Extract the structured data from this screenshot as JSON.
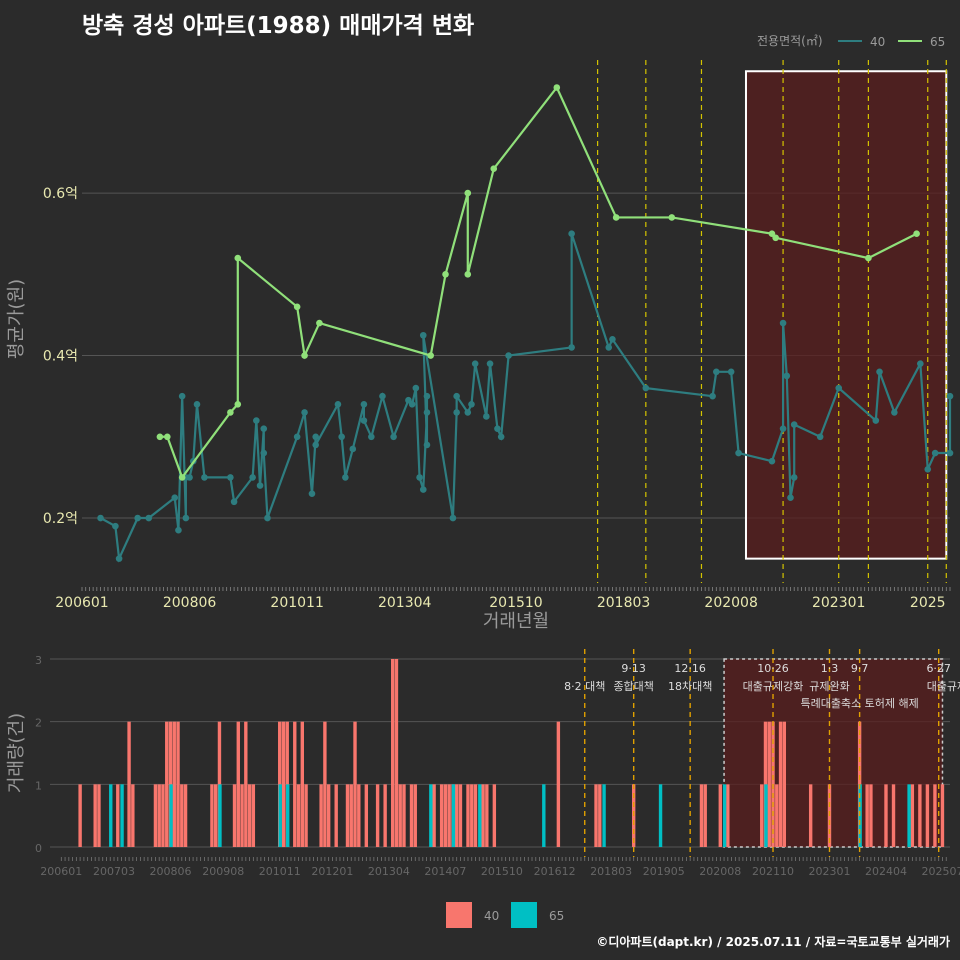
{
  "title": "방축 경성 아파트(1988) 매매가격 변화",
  "credit": "©디아파트(dapt.kr) / 2025.07.11 / 자료=국토교통부 실거래가",
  "colors": {
    "bg": "#2b2b2b",
    "series_40": "#2e7d80",
    "series_65": "#90e07a",
    "bar_40": "#f8766d",
    "bar_65": "#00bfc4",
    "policy_line": "#d4c400",
    "policy_line_bottom": "#e0a000",
    "highlight_fill": "#5a1e1e",
    "grid": "#555555"
  },
  "legend_top": {
    "title": "전용면적(㎡)",
    "items": [
      "40",
      "65"
    ]
  },
  "legend_bottom": {
    "items": [
      "40",
      "65"
    ]
  },
  "chart_data": [
    {
      "type": "line",
      "title": "방축 경성 아파트(1988) 매매가격 변화",
      "xlabel": "거래년월",
      "ylabel": "평균가(원)",
      "ylim": [
        0.12,
        0.77
      ],
      "yticks": [
        {
          "v": 0.2,
          "label": "0.2억"
        },
        {
          "v": 0.4,
          "label": "0.4억"
        },
        {
          "v": 0.6,
          "label": "0.6억"
        }
      ],
      "xlim": [
        "2006-01",
        "2025-07"
      ],
      "xticks": [
        "200601",
        "200806",
        "201011",
        "201304",
        "201510",
        "201803",
        "202008",
        "202301",
        "2025"
      ],
      "grid": true,
      "legend_position": "top-right",
      "highlight_box": {
        "x0": "2020-12",
        "x1": "2025-06",
        "y0": 0.15,
        "y1": 0.75
      },
      "policy_dates": [
        "2017-08",
        "2018-09",
        "2019-12",
        "2021-10",
        "2023-01",
        "2023-09",
        "2025-01",
        "2025-06"
      ],
      "series": [
        {
          "name": "40",
          "points": [
            [
              "2006-06",
              0.2
            ],
            [
              "2006-10",
              0.19
            ],
            [
              "2006-11",
              0.15
            ],
            [
              "2007-04",
              0.2
            ],
            [
              "2007-07",
              0.2
            ],
            [
              "2008-02",
              0.225
            ],
            [
              "2008-03",
              0.185
            ],
            [
              "2008-04",
              0.35
            ],
            [
              "2008-05",
              0.2
            ],
            [
              "2008-05",
              0.25
            ],
            [
              "2008-06",
              0.25
            ],
            [
              "2008-07",
              0.27
            ],
            [
              "2008-08",
              0.34
            ],
            [
              "2008-10",
              0.25
            ],
            [
              "2009-05",
              0.25
            ],
            [
              "2009-06",
              0.22
            ],
            [
              "2009-11",
              0.25
            ],
            [
              "2009-12",
              0.32
            ],
            [
              "2010-01",
              0.24
            ],
            [
              "2010-02",
              0.31
            ],
            [
              "2010-02",
              0.28
            ],
            [
              "2010-03",
              0.2
            ],
            [
              "2010-11",
              0.3
            ],
            [
              "2011-01",
              0.33
            ],
            [
              "2011-03",
              0.23
            ],
            [
              "2011-04",
              0.3
            ],
            [
              "2011-04",
              0.29
            ],
            [
              "2011-10",
              0.34
            ],
            [
              "2011-11",
              0.3
            ],
            [
              "2011-12",
              0.25
            ],
            [
              "2012-02",
              0.285
            ],
            [
              "2012-05",
              0.34
            ],
            [
              "2012-05",
              0.32
            ],
            [
              "2012-07",
              0.3
            ],
            [
              "2012-10",
              0.35
            ],
            [
              "2013-01",
              0.3
            ],
            [
              "2013-05",
              0.345
            ],
            [
              "2013-06",
              0.34
            ],
            [
              "2013-07",
              0.36
            ],
            [
              "2013-08",
              0.25
            ],
            [
              "2013-09",
              0.235
            ],
            [
              "2013-10",
              0.33
            ],
            [
              "2013-10",
              0.35
            ],
            [
              "2013-10",
              0.29
            ],
            [
              "2013-09",
              0.425
            ],
            [
              "2014-05",
              0.2
            ],
            [
              "2014-06",
              0.33
            ],
            [
              "2014-06",
              0.35
            ],
            [
              "2014-09",
              0.33
            ],
            [
              "2014-10",
              0.34
            ],
            [
              "2014-11",
              0.39
            ],
            [
              "2015-02",
              0.325
            ],
            [
              "2015-03",
              0.39
            ],
            [
              "2015-05",
              0.31
            ],
            [
              "2015-06",
              0.3
            ],
            [
              "2015-08",
              0.4
            ],
            [
              "2017-01",
              0.41
            ],
            [
              "2017-01",
              0.55
            ],
            [
              "2017-11",
              0.41
            ],
            [
              "2017-12",
              0.42
            ],
            [
              "2018-09",
              0.36
            ],
            [
              "2020-03",
              0.35
            ],
            [
              "2020-04",
              0.38
            ],
            [
              "2020-08",
              0.38
            ],
            [
              "2020-10",
              0.28
            ],
            [
              "2021-07",
              0.27
            ],
            [
              "2021-10",
              0.31
            ],
            [
              "2021-10",
              0.44
            ],
            [
              "2021-11",
              0.375
            ],
            [
              "2021-12",
              0.225
            ],
            [
              "2022-01",
              0.25
            ],
            [
              "2022-01",
              0.315
            ],
            [
              "2022-08",
              0.3
            ],
            [
              "2023-01",
              0.36
            ],
            [
              "2023-11",
              0.32
            ],
            [
              "2023-12",
              0.38
            ],
            [
              "2024-04",
              0.33
            ],
            [
              "2024-11",
              0.39
            ],
            [
              "2025-01",
              0.26
            ],
            [
              "2025-03",
              0.28
            ],
            [
              "2025-07",
              0.28
            ],
            [
              "2025-07",
              0.35
            ]
          ]
        },
        {
          "name": "65",
          "points": [
            [
              "2007-10",
              0.3
            ],
            [
              "2007-12",
              0.3
            ],
            [
              "2008-04",
              0.25
            ],
            [
              "2009-05",
              0.33
            ],
            [
              "2009-07",
              0.34
            ],
            [
              "2009-07",
              0.52
            ],
            [
              "2010-11",
              0.46
            ],
            [
              "2011-01",
              0.4
            ],
            [
              "2011-05",
              0.44
            ],
            [
              "2013-11",
              0.4
            ],
            [
              "2014-03",
              0.5
            ],
            [
              "2014-09",
              0.6
            ],
            [
              "2014-09",
              0.5
            ],
            [
              "2015-04",
              0.63
            ],
            [
              "2016-09",
              0.73
            ],
            [
              "2018-01",
              0.57
            ],
            [
              "2019-04",
              0.57
            ],
            [
              "2021-07",
              0.55
            ],
            [
              "2021-08",
              0.545
            ],
            [
              "2023-09",
              0.52
            ],
            [
              "2024-10",
              0.55
            ]
          ]
        }
      ]
    },
    {
      "type": "bar",
      "xlabel": "",
      "ylabel": "거래량(건)",
      "ylim": [
        0,
        3
      ],
      "yticks": [
        0,
        1,
        2,
        3
      ],
      "xticks": [
        "200601",
        "200703",
        "200806",
        "200908",
        "201011",
        "201201",
        "201304",
        "201407",
        "201510",
        "201612",
        "201803",
        "201905",
        "202008",
        "202110",
        "202301",
        "202404",
        "202507"
      ],
      "policies": [
        {
          "date": "2017-08",
          "label1": "",
          "label2": "8·2 대책"
        },
        {
          "date": "2018-09",
          "label1": "9·13",
          "label2": "종합대책"
        },
        {
          "date": "2019-12",
          "label1": "12·16",
          "label2": "18차대책"
        },
        {
          "date": "2021-10",
          "label1": "10·26",
          "label2": "대출규제강화"
        },
        {
          "date": "2023-01",
          "label1": "1·3",
          "label2": "규제완화"
        },
        {
          "date": "2023-09",
          "label1": "9·7",
          "label2": "특례대출축소 토허제 해제"
        },
        {
          "date": "2025-06",
          "label1": "6·27",
          "label2": "대출규제"
        }
      ],
      "series": [
        {
          "name": "40",
          "bars": [
            [
              "2006-06",
              1
            ],
            [
              "2006-10",
              1
            ],
            [
              "2006-11",
              1
            ],
            [
              "2007-04",
              1
            ],
            [
              "2007-07",
              2
            ],
            [
              "2007-08",
              1
            ],
            [
              "2008-02",
              1
            ],
            [
              "2008-03",
              1
            ],
            [
              "2008-04",
              1
            ],
            [
              "2008-05",
              2
            ],
            [
              "2008-06",
              2
            ],
            [
              "2008-07",
              2
            ],
            [
              "2008-08",
              2
            ],
            [
              "2008-09",
              1
            ],
            [
              "2008-10",
              1
            ],
            [
              "2009-05",
              1
            ],
            [
              "2009-06",
              1
            ],
            [
              "2009-07",
              2
            ],
            [
              "2009-11",
              1
            ],
            [
              "2009-12",
              2
            ],
            [
              "2010-01",
              1
            ],
            [
              "2010-02",
              2
            ],
            [
              "2010-03",
              1
            ],
            [
              "2010-04",
              1
            ],
            [
              "2010-11",
              2
            ],
            [
              "2010-12",
              2
            ],
            [
              "2011-01",
              2
            ],
            [
              "2011-03",
              2
            ],
            [
              "2011-04",
              1
            ],
            [
              "2011-05",
              2
            ],
            [
              "2011-06",
              1
            ],
            [
              "2011-10",
              1
            ],
            [
              "2011-11",
              2
            ],
            [
              "2011-12",
              1
            ],
            [
              "2012-02",
              1
            ],
            [
              "2012-05",
              1
            ],
            [
              "2012-06",
              1
            ],
            [
              "2012-07",
              2
            ],
            [
              "2012-08",
              1
            ],
            [
              "2012-10",
              1
            ],
            [
              "2013-01",
              1
            ],
            [
              "2013-03",
              1
            ],
            [
              "2013-05",
              3
            ],
            [
              "2013-06",
              3
            ],
            [
              "2013-07",
              1
            ],
            [
              "2013-08",
              1
            ],
            [
              "2013-10",
              1
            ],
            [
              "2013-11",
              1
            ],
            [
              "2014-04",
              1
            ],
            [
              "2014-06",
              1
            ],
            [
              "2014-07",
              1
            ],
            [
              "2014-08",
              1
            ],
            [
              "2014-09",
              1
            ],
            [
              "2014-10",
              1
            ],
            [
              "2014-11",
              1
            ],
            [
              "2015-01",
              1
            ],
            [
              "2015-02",
              1
            ],
            [
              "2015-03",
              1
            ],
            [
              "2015-05",
              1
            ],
            [
              "2015-06",
              1
            ],
            [
              "2015-08",
              1
            ],
            [
              "2017-01",
              2
            ],
            [
              "2017-11",
              1
            ],
            [
              "2017-12",
              1
            ],
            [
              "2018-09",
              1
            ],
            [
              "2020-03",
              1
            ],
            [
              "2020-04",
              1
            ],
            [
              "2020-08",
              1
            ],
            [
              "2020-10",
              1
            ],
            [
              "2021-07",
              1
            ],
            [
              "2021-08",
              2
            ],
            [
              "2021-09",
              2
            ],
            [
              "2021-10",
              2
            ],
            [
              "2021-11",
              1
            ],
            [
              "2021-12",
              2
            ],
            [
              "2022-01",
              2
            ],
            [
              "2022-08",
              1
            ],
            [
              "2023-01",
              1
            ],
            [
              "2023-09",
              2
            ],
            [
              "2023-11",
              1
            ],
            [
              "2023-12",
              1
            ],
            [
              "2024-04",
              1
            ],
            [
              "2024-06",
              1
            ],
            [
              "2024-11",
              1
            ],
            [
              "2025-01",
              1
            ],
            [
              "2025-03",
              1
            ],
            [
              "2025-05",
              1
            ],
            [
              "2025-07",
              1
            ]
          ]
        },
        {
          "name": "65",
          "bars": [
            [
              "2007-02",
              1
            ],
            [
              "2007-05",
              1
            ],
            [
              "2008-06",
              1
            ],
            [
              "2009-07",
              1
            ],
            [
              "2010-11",
              1
            ],
            [
              "2011-01",
              1
            ],
            [
              "2014-03",
              1
            ],
            [
              "2014-09",
              1
            ],
            [
              "2015-04",
              1
            ],
            [
              "2016-09",
              1
            ],
            [
              "2018-01",
              1
            ],
            [
              "2019-04",
              1
            ],
            [
              "2020-09",
              1
            ],
            [
              "2021-08",
              1
            ],
            [
              "2023-09",
              1
            ],
            [
              "2024-10",
              1
            ]
          ]
        }
      ]
    }
  ]
}
